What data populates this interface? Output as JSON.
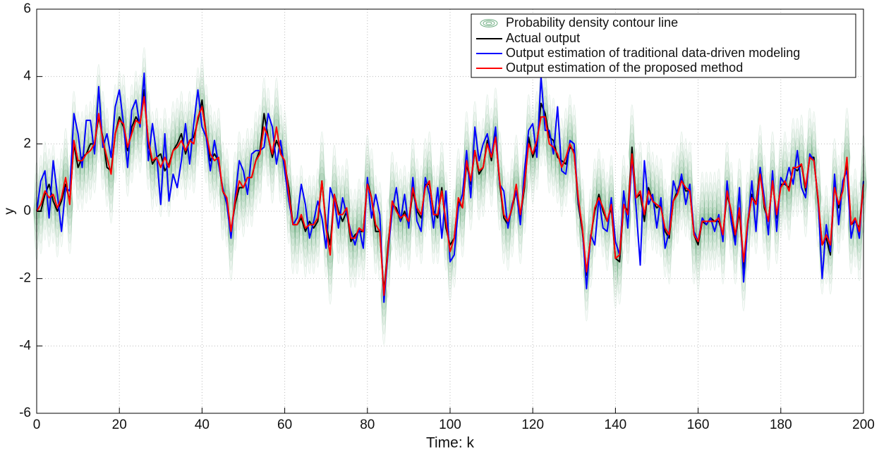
{
  "chart_data": {
    "type": "line",
    "xlabel": "Time: k",
    "ylabel": "y",
    "xlim": [
      0,
      200
    ],
    "xticks": [
      0,
      20,
      40,
      60,
      80,
      100,
      120,
      140,
      160,
      180,
      200
    ],
    "ylim": [
      -6,
      6
    ],
    "yticks": [
      -6,
      -4,
      -2,
      0,
      2,
      4,
      6
    ],
    "grid": true,
    "legend": "upper right",
    "contour": {
      "name": "Probability density contour line",
      "color": "#6fae82",
      "about": "chart_data.series.2"
    },
    "x": [
      0,
      1,
      2,
      3,
      4,
      5,
      6,
      7,
      8,
      9,
      10,
      11,
      12,
      13,
      14,
      15,
      16,
      17,
      18,
      19,
      20,
      21,
      22,
      23,
      24,
      25,
      26,
      27,
      28,
      29,
      30,
      31,
      32,
      33,
      34,
      35,
      36,
      37,
      38,
      39,
      40,
      41,
      42,
      43,
      44,
      45,
      46,
      47,
      48,
      49,
      50,
      51,
      52,
      53,
      54,
      55,
      56,
      57,
      58,
      59,
      60,
      61,
      62,
      63,
      64,
      65,
      66,
      67,
      68,
      69,
      70,
      71,
      72,
      73,
      74,
      75,
      76,
      77,
      78,
      79,
      80,
      81,
      82,
      83,
      84,
      85,
      86,
      87,
      88,
      89,
      90,
      91,
      92,
      93,
      94,
      95,
      96,
      97,
      98,
      99,
      100,
      101,
      102,
      103,
      104,
      105,
      106,
      107,
      108,
      109,
      110,
      111,
      112,
      113,
      114,
      115,
      116,
      117,
      118,
      119,
      120,
      121,
      122,
      123,
      124,
      125,
      126,
      127,
      128,
      129,
      130,
      131,
      132,
      133,
      134,
      135,
      136,
      137,
      138,
      139,
      140,
      141,
      142,
      143,
      144,
      145,
      146,
      147,
      148,
      149,
      150,
      151,
      152,
      153,
      154,
      155,
      156,
      157,
      158,
      159,
      160,
      161,
      162,
      163,
      164,
      165,
      166,
      167,
      168,
      169,
      170,
      171,
      172,
      173,
      174,
      175,
      176,
      177,
      178,
      179,
      180,
      181,
      182,
      183,
      184,
      185,
      186,
      187,
      188,
      189,
      190,
      191,
      192,
      193,
      194,
      195,
      196,
      197,
      198,
      199,
      200
    ],
    "series": [
      {
        "name": "Actual output",
        "color": "#000000",
        "values": [
          0,
          0,
          0.5,
          0.8,
          0.3,
          0,
          0.3,
          0.8,
          0.3,
          2.0,
          1.3,
          1.6,
          1.7,
          2.0,
          2.0,
          2.8,
          2.2,
          1.3,
          1.2,
          2.3,
          2.8,
          2.5,
          1.8,
          2.5,
          2.8,
          2.6,
          3.6,
          2.0,
          1.4,
          1.6,
          1.7,
          1.2,
          1.4,
          1.8,
          2.0,
          2.3,
          1.7,
          2.1,
          2.2,
          2.7,
          3.3,
          2.3,
          1.5,
          1.7,
          1.5,
          0.6,
          0.3,
          -0.6,
          0.2,
          0.7,
          0.7,
          1.0,
          1.0,
          1.5,
          1.8,
          2.9,
          2.2,
          1.6,
          2.1,
          1.8,
          1.4,
          0.7,
          -0.4,
          -0.4,
          -0.2,
          -0.6,
          -0.3,
          -0.5,
          -0.3,
          0.9,
          -0.4,
          -1.0,
          0.5,
          0,
          -0.3,
          0,
          -0.9,
          -0.7,
          -0.6,
          -0.6,
          0.9,
          0.4,
          -0.6,
          -0.6,
          -2.4,
          -1.0,
          0.2,
          0.1,
          -0.3,
          0,
          -0.4,
          0.6,
          0,
          -0.2,
          0.8,
          0.8,
          0,
          -0.2,
          0.7,
          -0.5,
          -1.0,
          -0.8,
          0.3,
          0.1,
          1.4,
          0.8,
          1.8,
          1.1,
          1.3,
          2.1,
          1.5,
          2.3,
          0.8,
          -0.2,
          -0.4,
          0.1,
          0.6,
          -0.2,
          0.7,
          2.2,
          1.6,
          2.0,
          3.2,
          2.9,
          2.2,
          2.1,
          1.6,
          1.5,
          1.4,
          1.9,
          1.8,
          0.2,
          -0.6,
          -1.9,
          -0.8,
          0,
          0.5,
          0,
          -0.3,
          0.1,
          -1.4,
          -1.5,
          0.2,
          0,
          1.9,
          0.4,
          0.5,
          -0.3,
          0.7,
          0.3,
          0.1,
          0.2,
          -0.6,
          -0.8,
          0.3,
          0.6,
          1.0,
          0.6,
          0.6,
          -0.7,
          -1.0,
          -0.3,
          -0.4,
          -0.2,
          -0.3,
          -0.3,
          -0.7,
          0.5,
          0,
          -0.8,
          0,
          -1.7,
          -0.4,
          0.5,
          0.2,
          1.3,
          0.1,
          -0.3,
          0.9,
          -0.2,
          0.8,
          0.8,
          0.7,
          1.3,
          1.2,
          1.4,
          0.6,
          1.6,
          1.6,
          0.3,
          -1.0,
          -0.8,
          -1.3,
          0.8,
          0.1,
          0.8,
          1.4,
          -0.4,
          -0.3,
          -0.5,
          0.9
        ]
      },
      {
        "name": "Output estimation of traditional data-driven modeling",
        "color": "#0000ff",
        "values": [
          0,
          0.9,
          1.2,
          -0.2,
          1.5,
          0.5,
          -0.6,
          0.7,
          0.6,
          2.9,
          2.3,
          1.3,
          2.7,
          2.7,
          1.7,
          3.7,
          1.9,
          2.3,
          1.6,
          3.1,
          3.6,
          2.6,
          1.3,
          3.0,
          3.3,
          2.5,
          4.1,
          1.5,
          2.6,
          1.7,
          0.2,
          2.3,
          0.3,
          1.1,
          0.7,
          1.5,
          2.6,
          1.4,
          2.6,
          3.6,
          2.5,
          2.2,
          1.2,
          2.1,
          1.4,
          0.7,
          0.2,
          -0.8,
          0.4,
          1.5,
          1.2,
          0.5,
          1.7,
          1.8,
          1.8,
          1.9,
          2.9,
          2.5,
          1.4,
          2.1,
          1.2,
          0.3,
          -0.4,
          -0.2,
          0.8,
          0.2,
          -0.8,
          -0.3,
          0.3,
          -0.2,
          -1.1,
          0.7,
          0.3,
          -0.5,
          0.4,
          -0.1,
          -0.6,
          -1.0,
          -0.5,
          -1.1,
          1.0,
          -0.2,
          0.5,
          -0.1,
          -2.7,
          -1.2,
          0,
          0.7,
          -0.3,
          0.5,
          -0.5,
          1.0,
          -0.3,
          -0.6,
          1.0,
          0.5,
          -0.5,
          0.7,
          -0.8,
          0.6,
          -1.5,
          -1.3,
          0.1,
          0.5,
          1.8,
          0.4,
          2.5,
          1.5,
          2.0,
          2.3,
          1.6,
          2.5,
          0.8,
          0.6,
          -0.5,
          0.2,
          0.6,
          -0.4,
          1.2,
          2.4,
          2.6,
          1.6,
          4.0,
          2.4,
          2.4,
          1.7,
          3.1,
          1.2,
          1.1,
          2.1,
          2.0,
          0.3,
          -0.5,
          -2.3,
          -0.7,
          -1.0,
          0.4,
          -0.5,
          -0.6,
          0.4,
          -0.9,
          -1.3,
          0.6,
          -0.5,
          1.6,
          0.1,
          -1.6,
          1.5,
          0.2,
          0.5,
          -0.5,
          0.4,
          -1.1,
          -0.6,
          0.9,
          0.5,
          1.1,
          0.2,
          0.8,
          -0.6,
          -0.9,
          -0.2,
          -0.4,
          -0.2,
          -0.6,
          -0.1,
          -0.9,
          0.9,
          -0.3,
          -1.0,
          0.7,
          -2.1,
          -0.4,
          0.9,
          -0.6,
          1.3,
          0.4,
          -0.7,
          1.2,
          -0.6,
          1.0,
          0.8,
          1.3,
          0.8,
          1.8,
          0.7,
          0.4,
          1.7,
          1.5,
          0.4,
          -2.0,
          -0.4,
          -1.2,
          1.1,
          -0.4,
          0.9,
          1.2,
          -0.8,
          -0.2,
          -0.8,
          0.9
        ]
      },
      {
        "name": "Output estimation of the proposed method",
        "color": "#ff0000",
        "values": [
          0,
          0.2,
          0.6,
          0.4,
          0.5,
          0.1,
          0.4,
          1.0,
          0.2,
          2.1,
          1.5,
          1.5,
          1.7,
          1.8,
          2.0,
          2.9,
          2.1,
          1.6,
          1.1,
          2.3,
          2.7,
          2.6,
          1.9,
          2.3,
          2.7,
          2.6,
          3.4,
          2.1,
          1.5,
          1.6,
          1.3,
          1.6,
          1.3,
          1.8,
          1.9,
          2.1,
          1.8,
          2.1,
          2.0,
          2.8,
          3.1,
          2.3,
          1.7,
          1.5,
          1.6,
          0.6,
          0.4,
          -0.6,
          0.3,
          0.9,
          0.7,
          1.0,
          1.0,
          1.5,
          1.7,
          2.5,
          2.2,
          1.7,
          2.5,
          1.7,
          1.5,
          0.5,
          -0.4,
          -0.4,
          -0.1,
          -0.5,
          -0.4,
          -0.4,
          -0.2,
          0.9,
          -0.5,
          -1.3,
          0.5,
          -0.1,
          -0.1,
          0.1,
          -0.8,
          -0.8,
          -0.5,
          -0.6,
          0.8,
          0.4,
          -0.4,
          -0.6,
          -2.5,
          -1.1,
          0.3,
          0,
          -0.2,
          -0.1,
          -0.3,
          0.7,
          0.1,
          -0.1,
          0.7,
          0.9,
          -0.1,
          -0.1,
          0.6,
          -0.3,
          -1.2,
          -0.8,
          0.4,
          0.1,
          1.5,
          0.9,
          1.8,
          1.2,
          1.3,
          2.0,
          1.6,
          2.2,
          0.9,
          -0.1,
          -0.3,
          0.1,
          0.8,
          -0.1,
          0.8,
          2.0,
          1.7,
          2.1,
          2.8,
          2.8,
          2.0,
          1.9,
          1.7,
          1.3,
          1.6,
          2.0,
          1.7,
          0.4,
          -0.5,
          -1.8,
          -0.8,
          0.1,
          0.4,
          0.1,
          -0.3,
          0.2,
          -1.4,
          -1.3,
          0.2,
          -0.1,
          1.7,
          0.4,
          0.6,
          -0.1,
          0.6,
          0.3,
          0.2,
          0.1,
          -0.5,
          -0.7,
          0.3,
          0.5,
          0.9,
          0.7,
          0.6,
          -0.7,
          -0.9,
          -0.3,
          -0.3,
          -0.3,
          -0.3,
          -0.2,
          -0.7,
          0.6,
          0,
          -0.7,
          0.1,
          -1.5,
          -0.3,
          0.4,
          0.2,
          1.1,
          0.2,
          -0.3,
          0.9,
          -0.1,
          0.7,
          0.9,
          0.6,
          1.3,
          1.3,
          1.4,
          0.7,
          1.6,
          1.5,
          0.4,
          -1.0,
          -0.7,
          -1.0,
          0.7,
          0.2,
          0.6,
          1.6,
          -0.4,
          -0.2,
          -0.6,
          0.8
        ]
      }
    ]
  }
}
